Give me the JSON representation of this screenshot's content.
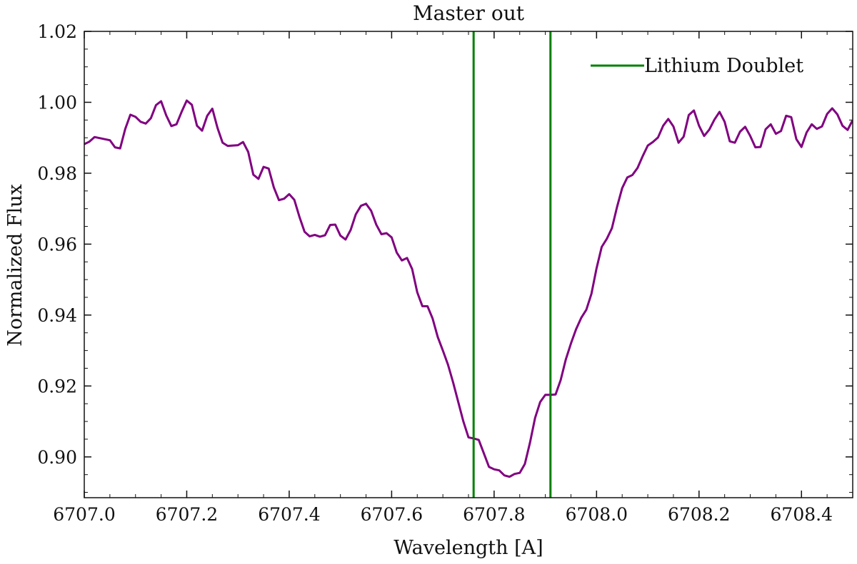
{
  "chart_data": {
    "type": "line",
    "title": "Master out",
    "xlabel": "Wavelength [A]",
    "ylabel": "Normalized Flux",
    "xlim": [
      6707.0,
      6708.5
    ],
    "ylim": [
      0.8885,
      1.02
    ],
    "x_ticks": [
      6707.0,
      6707.2,
      6707.4,
      6707.6,
      6707.8,
      6708.0,
      6708.2,
      6708.4
    ],
    "x_tick_labels": [
      "6707.0",
      "6707.2",
      "6707.4",
      "6707.6",
      "6707.8",
      "6708.0",
      "6708.2",
      "6708.4"
    ],
    "y_ticks": [
      0.9,
      0.92,
      0.94,
      0.96,
      0.98,
      1.0,
      1.02
    ],
    "y_tick_labels": [
      "0.90",
      "0.92",
      "0.94",
      "0.96",
      "0.98",
      "1.00",
      "1.02"
    ],
    "grid": false,
    "legend": {
      "position": "top-right",
      "entries": [
        "Lithium Doublet"
      ]
    },
    "series": [
      {
        "color": "#800080",
        "x": [
          6707.0,
          6707.01,
          6707.02,
          6707.03,
          6707.04,
          6707.05,
          6707.06,
          6707.07,
          6707.08,
          6707.09,
          6707.1,
          6707.11,
          6707.12,
          6707.13,
          6707.14,
          6707.15,
          6707.16,
          6707.17,
          6707.18,
          6707.19,
          6707.2,
          6707.21,
          6707.22,
          6707.23,
          6707.24,
          6707.25,
          6707.26,
          6707.27,
          6707.28,
          6707.29,
          6707.3,
          6707.31,
          6707.32,
          6707.33,
          6707.34,
          6707.35,
          6707.36,
          6707.37,
          6707.38,
          6707.39,
          6707.4,
          6707.41,
          6707.42,
          6707.43,
          6707.44,
          6707.45,
          6707.46,
          6707.47,
          6707.48,
          6707.49,
          6707.5,
          6707.51,
          6707.52,
          6707.53,
          6707.54,
          6707.55,
          6707.56,
          6707.57,
          6707.58,
          6707.59,
          6707.6,
          6707.61,
          6707.62,
          6707.63,
          6707.64,
          6707.65,
          6707.66,
          6707.67,
          6707.68,
          6707.69,
          6707.7,
          6707.71,
          6707.72,
          6707.73,
          6707.74,
          6707.75,
          6707.76,
          6707.77,
          6707.78,
          6707.79,
          6707.8,
          6707.81,
          6707.82,
          6707.83,
          6707.84,
          6707.85,
          6707.86,
          6707.87,
          6707.88,
          6707.89,
          6707.9,
          6707.91,
          6707.92,
          6707.93,
          6707.94,
          6707.95,
          6707.96,
          6707.97,
          6707.98,
          6707.99,
          6708.0,
          6708.01,
          6708.02,
          6708.03,
          6708.04,
          6708.05,
          6708.06,
          6708.07,
          6708.08,
          6708.09,
          6708.1,
          6708.11,
          6708.12,
          6708.13,
          6708.14,
          6708.15,
          6708.16,
          6708.17,
          6708.18,
          6708.19,
          6708.2,
          6708.21,
          6708.22,
          6708.23,
          6708.24,
          6708.25,
          6708.26,
          6708.27,
          6708.28,
          6708.29,
          6708.3,
          6708.31,
          6708.32,
          6708.33,
          6708.34,
          6708.35,
          6708.36,
          6708.37,
          6708.38,
          6708.39,
          6708.4,
          6708.41,
          6708.42,
          6708.43,
          6708.44,
          6708.45,
          6708.46,
          6708.47,
          6708.48,
          6708.49,
          6708.5
        ],
        "y": [
          0.9882,
          0.9889,
          0.9902,
          0.9899,
          0.9896,
          0.9893,
          0.9873,
          0.987,
          0.9925,
          0.9965,
          0.9959,
          0.9945,
          0.994,
          0.9955,
          0.9992,
          1.0003,
          0.9963,
          0.9933,
          0.9938,
          0.9973,
          1.0005,
          0.9993,
          0.9934,
          0.992,
          0.9962,
          0.9982,
          0.9928,
          0.9886,
          0.9877,
          0.9878,
          0.9879,
          0.9888,
          0.986,
          0.9796,
          0.9784,
          0.9818,
          0.9813,
          0.976,
          0.9724,
          0.9728,
          0.9741,
          0.9725,
          0.9677,
          0.9635,
          0.9622,
          0.9626,
          0.9621,
          0.9625,
          0.9654,
          0.9655,
          0.9624,
          0.9613,
          0.964,
          0.9684,
          0.9708,
          0.9714,
          0.9694,
          0.9655,
          0.9628,
          0.9631,
          0.9619,
          0.9576,
          0.9554,
          0.9561,
          0.953,
          0.9464,
          0.9425,
          0.9425,
          0.939,
          0.9338,
          0.93,
          0.926,
          0.921,
          0.9155,
          0.91,
          0.9055,
          0.9052,
          0.9048,
          0.901,
          0.8972,
          0.8965,
          0.8962,
          0.8948,
          0.8944,
          0.8952,
          0.8955,
          0.898,
          0.904,
          0.911,
          0.9155,
          0.9175,
          0.9175,
          0.9176,
          0.9217,
          0.9275,
          0.932,
          0.936,
          0.9392,
          0.9415,
          0.946,
          0.9532,
          0.9592,
          0.9615,
          0.9645,
          0.9705,
          0.9758,
          0.9788,
          0.9795,
          0.9815,
          0.9848,
          0.9878,
          0.9888,
          0.9901,
          0.9934,
          0.9953,
          0.9932,
          0.9886,
          0.9903,
          0.9964,
          0.9977,
          0.9934,
          0.9905,
          0.9923,
          0.9951,
          0.9973,
          0.9945,
          0.989,
          0.9886,
          0.9917,
          0.9931,
          0.9905,
          0.9873,
          0.9874,
          0.9924,
          0.9938,
          0.9911,
          0.9919,
          0.9962,
          0.9958,
          0.9896,
          0.9874,
          0.9915,
          0.9938,
          0.9925,
          0.9932,
          0.9967,
          0.9983,
          0.9966,
          0.9934,
          0.9922,
          0.995
        ]
      },
      {
        "name": "Lithium Doublet",
        "color": "#008000",
        "vlines": [
          6707.76,
          6707.91
        ]
      }
    ]
  }
}
